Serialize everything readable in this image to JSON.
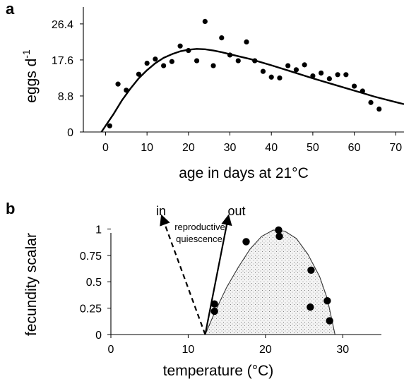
{
  "figure": {
    "panels": [
      "a",
      "b"
    ]
  },
  "chart_data": [
    {
      "panel": "a",
      "type": "scatter",
      "xlabel": "age in days at 21°C",
      "ylabel_main": "eggs d",
      "ylabel_sup": "-1",
      "xlim": [
        -4,
        72
      ],
      "ylim": [
        0,
        30
      ],
      "xticks": [
        0,
        10,
        20,
        30,
        40,
        50,
        60,
        70
      ],
      "yticks": [
        0,
        8.8,
        17.6,
        26.4
      ],
      "ytick_labels": [
        "0",
        "8.8",
        "17.6",
        "26.4"
      ],
      "grid": false,
      "series": [
        {
          "role": "observed",
          "marker": "dot",
          "points": [
            [
              1,
              1.5
            ],
            [
              3,
              11.7
            ],
            [
              5,
              10.2
            ],
            [
              8,
              14.1
            ],
            [
              10,
              16.8
            ],
            [
              12,
              17.8
            ],
            [
              14,
              16.2
            ],
            [
              16,
              17.2
            ],
            [
              18,
              21.0
            ],
            [
              20,
              19.9
            ],
            [
              22,
              17.4
            ],
            [
              24,
              27.0
            ],
            [
              26,
              16.2
            ],
            [
              28,
              23.0
            ],
            [
              30,
              18.8
            ],
            [
              32,
              17.4
            ],
            [
              34,
              22.0
            ],
            [
              36,
              17.4
            ],
            [
              38,
              14.8
            ],
            [
              40,
              13.4
            ],
            [
              42,
              13.2
            ],
            [
              44,
              16.2
            ],
            [
              46,
              15.2
            ],
            [
              48,
              16.4
            ],
            [
              50,
              13.7
            ],
            [
              52,
              14.4
            ],
            [
              54,
              13.0
            ],
            [
              56,
              14.0
            ],
            [
              58,
              14.0
            ],
            [
              60,
              11.2
            ],
            [
              62,
              10.0
            ],
            [
              64,
              7.2
            ],
            [
              66,
              5.6
            ]
          ]
        },
        {
          "role": "fitted",
          "marker": "line",
          "points": [
            [
              -1,
              0
            ],
            [
              2,
              4.5
            ],
            [
              4,
              7.8
            ],
            [
              6,
              10.6
            ],
            [
              8,
              13.1
            ],
            [
              10,
              15.1
            ],
            [
              12,
              16.8
            ],
            [
              14,
              18.1
            ],
            [
              16,
              19.0
            ],
            [
              18,
              19.7
            ],
            [
              20,
              20.1
            ],
            [
              22,
              20.3
            ],
            [
              24,
              20.2
            ],
            [
              26,
              19.9
            ],
            [
              28,
              19.5
            ],
            [
              30,
              19.0
            ],
            [
              35,
              17.8
            ],
            [
              40,
              16.3
            ],
            [
              45,
              14.7
            ],
            [
              50,
              13.1
            ],
            [
              55,
              11.6
            ],
            [
              60,
              10.1
            ],
            [
              65,
              8.6
            ],
            [
              70,
              7.3
            ],
            [
              72,
              6.8
            ]
          ]
        }
      ]
    },
    {
      "panel": "b",
      "type": "scatter",
      "xlabel": "temperature (°C)",
      "ylabel": "fecundity scalar",
      "xlim": [
        0,
        35
      ],
      "ylim": [
        0,
        1.05
      ],
      "xticks": [
        0,
        10,
        20,
        30
      ],
      "yticks": [
        0,
        0.25,
        0.5,
        0.75,
        1
      ],
      "ytick_labels": [
        "0",
        "0.25",
        "0.5",
        "0.75",
        "1"
      ],
      "grid": false,
      "curve": {
        "style": "shaded-dotted",
        "points": [
          [
            12.2,
            0
          ],
          [
            13.5,
            0.22
          ],
          [
            15,
            0.45
          ],
          [
            16.5,
            0.64
          ],
          [
            18,
            0.81
          ],
          [
            19.5,
            0.93
          ],
          [
            21,
            0.99
          ],
          [
            22.5,
            0.98
          ],
          [
            24,
            0.91
          ],
          [
            25.5,
            0.76
          ],
          [
            27,
            0.55
          ],
          [
            28,
            0.34
          ],
          [
            29,
            0
          ]
        ]
      },
      "points": [
        [
          13.4,
          0.29
        ],
        [
          13.4,
          0.22
        ],
        [
          17.5,
          0.88
        ],
        [
          21.7,
          0.99
        ],
        [
          21.8,
          0.93
        ],
        [
          25.9,
          0.61
        ],
        [
          25.8,
          0.26
        ],
        [
          28.0,
          0.32
        ],
        [
          28.3,
          0.13
        ]
      ],
      "arrows": [
        {
          "label": "in",
          "style": "dashed",
          "from": [
            12.2,
            0
          ],
          "to": [
            6.6,
            1.12
          ]
        },
        {
          "label": "out",
          "style": "solid",
          "from": [
            12.2,
            0
          ],
          "to": [
            15.2,
            1.12
          ]
        }
      ],
      "annotations": {
        "in": "in",
        "out": "out",
        "line1": "reproductive",
        "line2": "quiescence"
      }
    }
  ],
  "colors": {
    "ink": "#000000",
    "fill": "#f3f3f3",
    "stipple": "#666666"
  }
}
